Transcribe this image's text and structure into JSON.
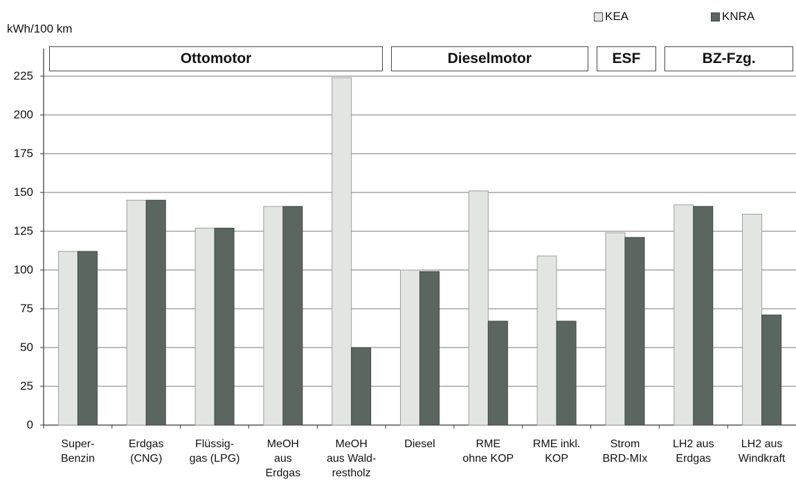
{
  "colors": {
    "kea": "#e3e5e2",
    "knra": "#5c6660",
    "grid": "#777777",
    "box_border": "#444444"
  },
  "header": {
    "ylabel": "kWh/100 km"
  },
  "legend": [
    {
      "label": "KEA",
      "color": "#e3e5e2"
    },
    {
      "label": "KNRA",
      "color": "#5c6660"
    }
  ],
  "groups": [
    {
      "label": "Ottomotor",
      "from": 0,
      "to": 4
    },
    {
      "label": "Dieselmotor",
      "from": 5,
      "to": 7
    },
    {
      "label": "ESF",
      "from": 8,
      "to": 8
    },
    {
      "label": "BZ-Fzg.",
      "from": 9,
      "to": 10
    }
  ],
  "chart_data": {
    "type": "bar",
    "ylabel": "kWh/100 km",
    "ylim": [
      0,
      225
    ],
    "yticks": [
      0,
      25,
      50,
      75,
      100,
      125,
      150,
      175,
      200,
      225
    ],
    "grid": true,
    "legend_position": "top-right",
    "categories": [
      "Super-\nBenzin",
      "Erdgas\n(CNG)",
      "Flüssig-\ngas (LPG)",
      "MeOH\naus\nErdgas",
      "MeOH\naus Wald-\nrestholz",
      "Diesel",
      "RME\nohne KOP",
      "RME inkl.\nKOP",
      "Strom\nBRD-MIx",
      "LH2 aus\nErdgas",
      "LH2 aus\nWindkraft"
    ],
    "series": [
      {
        "name": "KEA",
        "values": [
          112,
          145,
          127,
          141,
          224,
          100,
          151,
          109,
          124,
          142,
          136
        ]
      },
      {
        "name": "KNRA",
        "values": [
          112,
          145,
          127,
          141,
          50,
          99,
          67,
          67,
          121,
          141,
          71
        ]
      }
    ]
  }
}
